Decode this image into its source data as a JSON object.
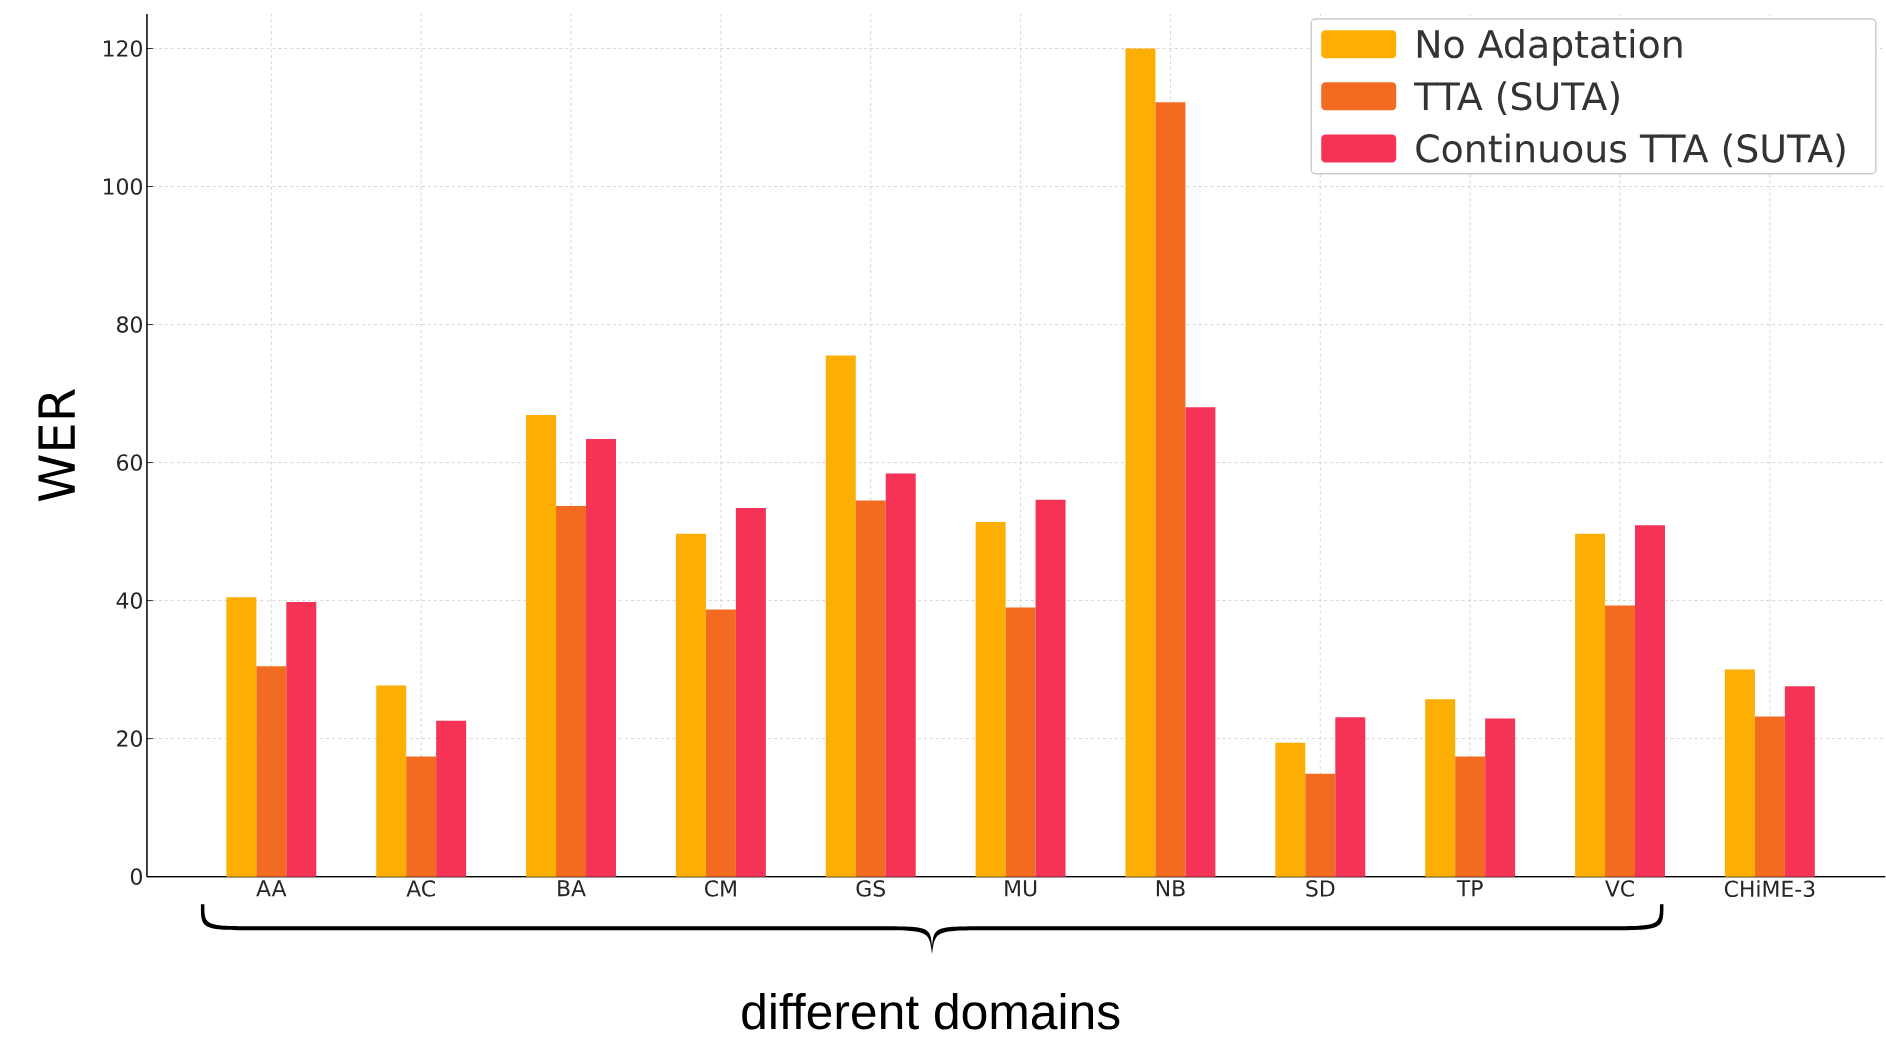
{
  "chart_data": {
    "type": "bar",
    "ylabel": "WER",
    "categories": [
      "AA",
      "AC",
      "BA",
      "CM",
      "GS",
      "MU",
      "NB",
      "SD",
      "TP",
      "VC",
      "CHiME-3"
    ],
    "series": [
      {
        "name": "No Adaptation",
        "color": "#fdae03",
        "values": [
          40.5,
          27.7,
          66.9,
          49.7,
          75.5,
          51.4,
          120,
          19.4,
          25.7,
          49.7,
          30.0
        ]
      },
      {
        "name": "TTA (SUTA)",
        "color": "#f26b21",
        "values": [
          30.5,
          17.4,
          53.7,
          38.7,
          54.5,
          39.0,
          112.2,
          14.9,
          17.4,
          39.3,
          23.2
        ]
      },
      {
        "name": "Continuous TTA (SUTA)",
        "color": "#f43356",
        "values": [
          39.8,
          22.6,
          63.4,
          53.4,
          58.4,
          54.6,
          68.0,
          23.1,
          22.9,
          50.9,
          27.6
        ]
      }
    ],
    "ylim": [
      0,
      125
    ],
    "yticks": [
      0,
      20,
      40,
      60,
      80,
      100,
      120
    ],
    "grid": true,
    "legend": "top right",
    "annotations": [
      "different domains"
    ]
  }
}
